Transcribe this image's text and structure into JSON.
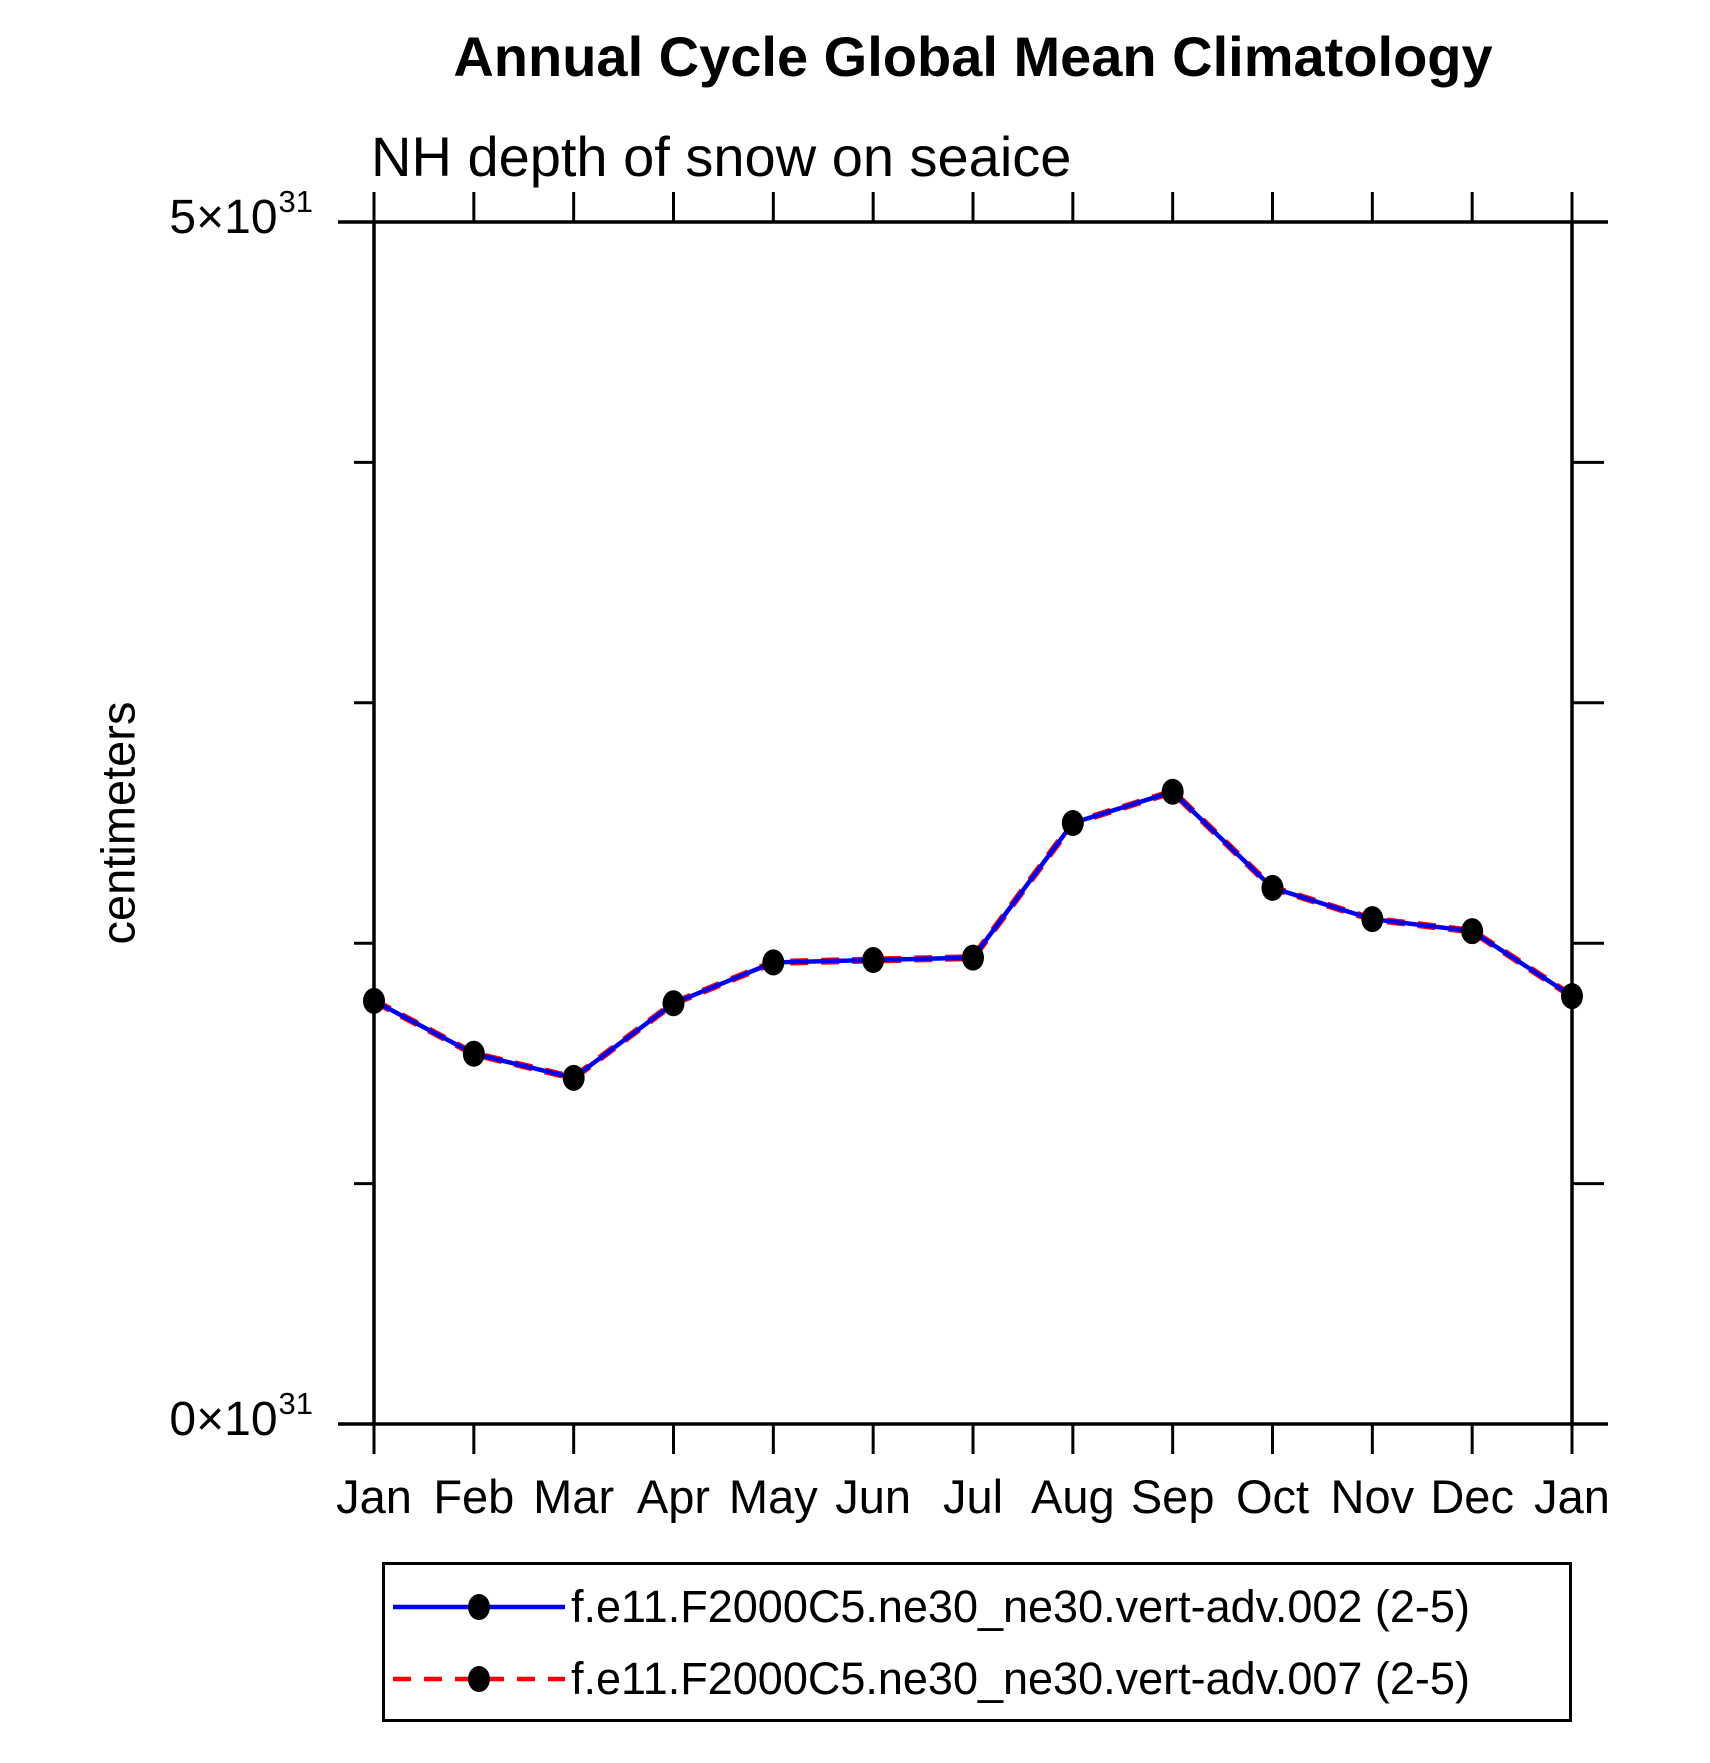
{
  "header": {
    "title": "Annual Cycle Global Mean Climatology",
    "subtitle": "NH depth of snow on seaice"
  },
  "y_axis": {
    "label": "centimeters",
    "top_tick": {
      "base": "5×10",
      "exp": "31"
    },
    "bottom_tick": {
      "base": "0×10",
      "exp": "31"
    }
  },
  "chart_data": {
    "type": "line",
    "title": "Annual Cycle Global Mean Climatology",
    "subtitle": "NH depth of snow on seaice",
    "ylabel": "centimeters",
    "categories": [
      "Jan",
      "Feb",
      "Mar",
      "Apr",
      "May",
      "Jun",
      "Jul",
      "Aug",
      "Sep",
      "Oct",
      "Nov",
      "Dec",
      "Jan"
    ],
    "value_scale_exponent": 31,
    "ylim": [
      0,
      5
    ],
    "ytick_labels": [
      "0×10³¹",
      "5×10³¹"
    ],
    "y_major_ticks": [
      0,
      5
    ],
    "y_minor_ticks": [
      1,
      2,
      3,
      4
    ],
    "grid": false,
    "legend_position": "bottom",
    "marker": {
      "shape": "filled-circle",
      "color": "#000000"
    },
    "series": [
      {
        "name": "f.e11.F2000C5.ne30_ne30.vert-adv.002 (2-5)",
        "color": "#0000ee",
        "style": "solid",
        "dash": "",
        "values_1e31": [
          1.76,
          1.54,
          1.44,
          1.75,
          1.92,
          1.93,
          1.94,
          2.5,
          2.63,
          2.23,
          2.1,
          2.05,
          1.78
        ]
      },
      {
        "name": "f.e11.F2000C5.ne30_ne30.vert-adv.007 (2-5)",
        "color": "#ff0000",
        "style": "dashed",
        "dash": "18 13",
        "values_1e31": [
          1.76,
          1.54,
          1.44,
          1.75,
          1.92,
          1.93,
          1.94,
          2.5,
          2.63,
          2.23,
          2.1,
          2.05,
          1.78
        ]
      }
    ]
  }
}
